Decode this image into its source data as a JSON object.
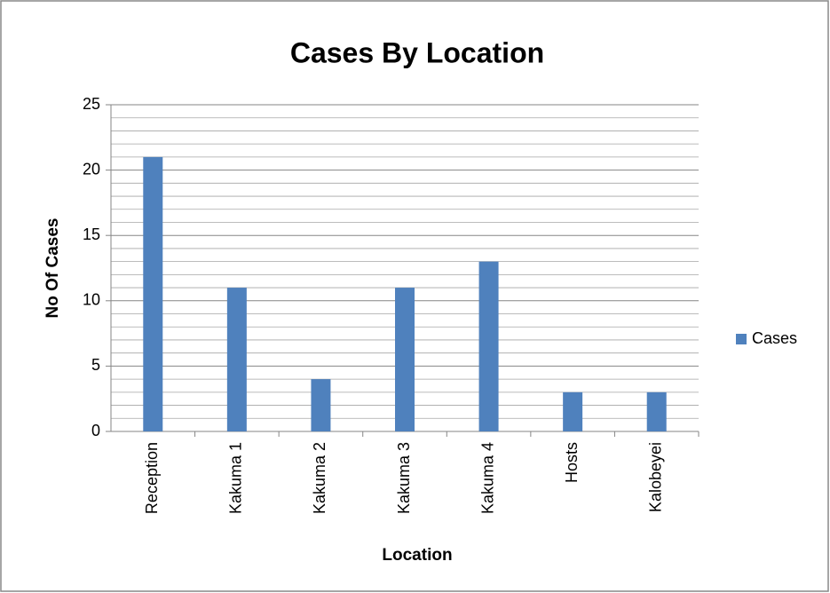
{
  "chart_data": {
    "type": "bar",
    "title": "Cases By Location",
    "x_label": "Location",
    "y_label": "No Of Cases",
    "categories": [
      "Reception",
      "Kakuma 1",
      "Kakuma 2",
      "Kakuma 3",
      "Kakuma 4",
      "Hosts",
      "Kalobeyei"
    ],
    "series": [
      {
        "name": "Cases",
        "color": "#4f81bd",
        "values": [
          21,
          11,
          4,
          11,
          13,
          3,
          3
        ]
      }
    ],
    "ylim": [
      0,
      25
    ],
    "yticks": [
      0,
      5,
      10,
      15,
      20,
      25
    ],
    "y_minor_ticks": [
      1,
      2,
      3,
      4,
      6,
      7,
      8,
      9,
      11,
      12,
      13,
      14,
      16,
      17,
      18,
      19,
      21,
      22,
      23,
      24
    ],
    "grid": true,
    "legend": "right"
  }
}
